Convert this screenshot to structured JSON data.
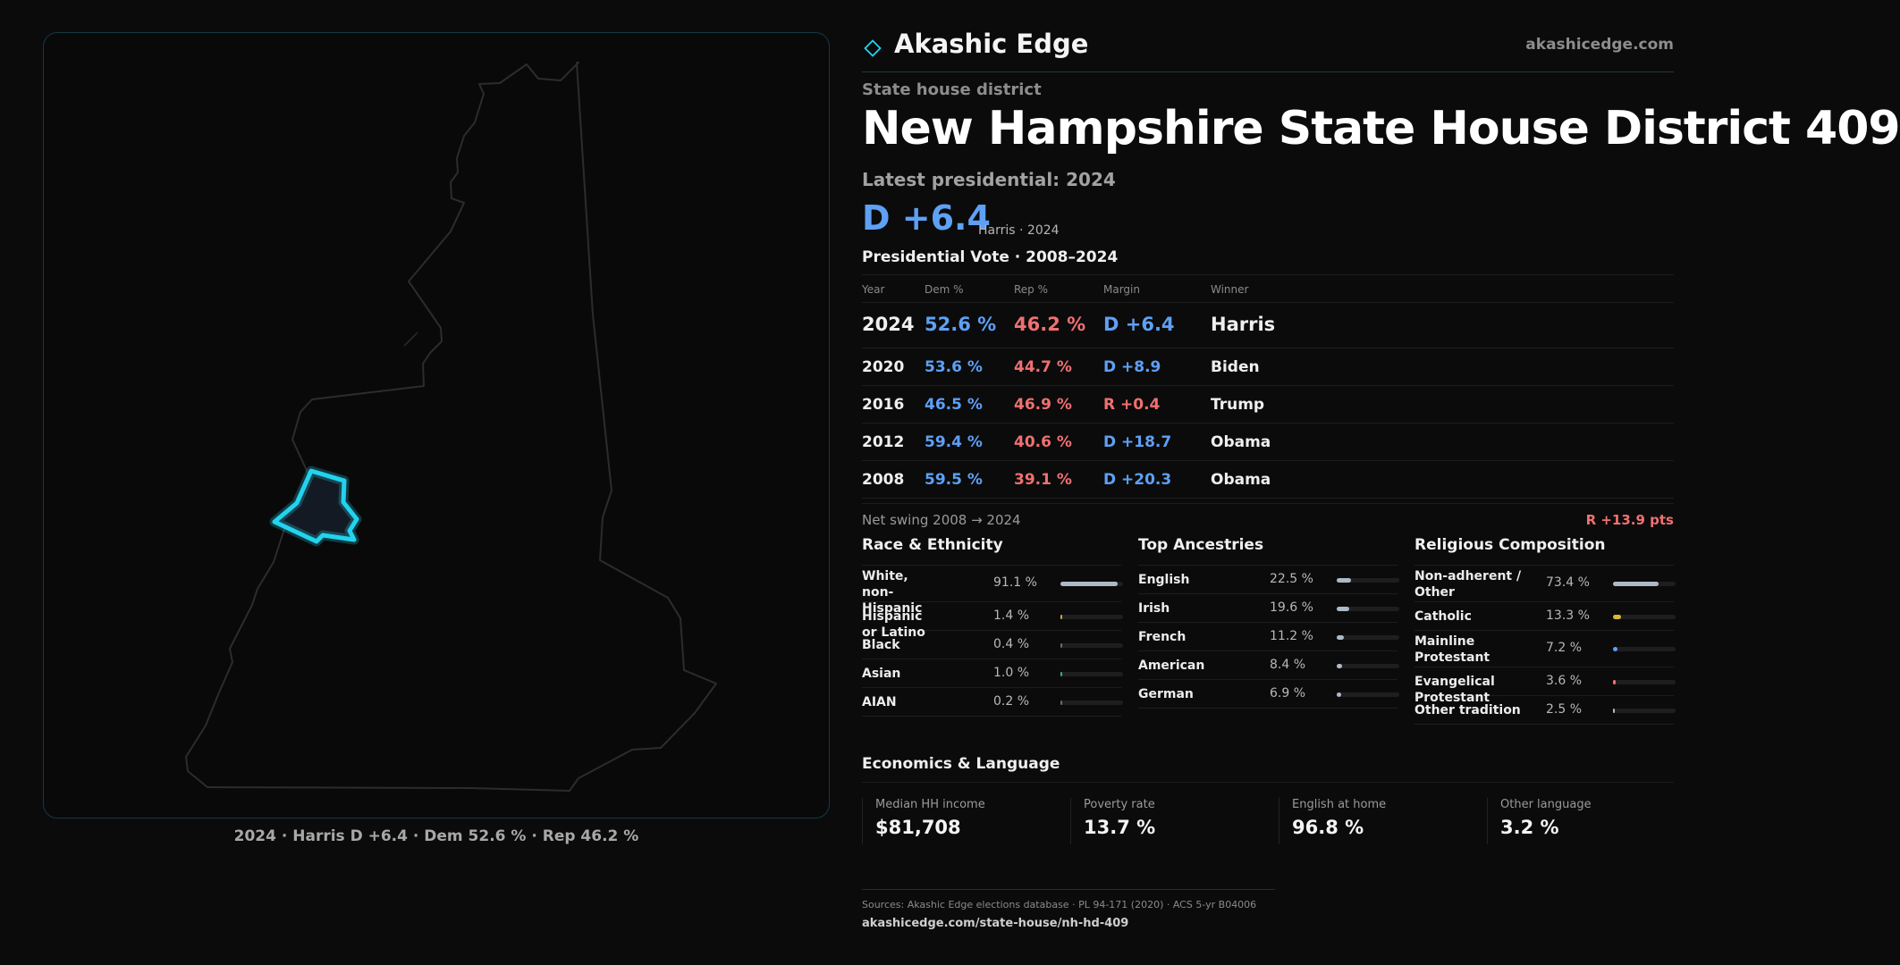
{
  "map": {
    "caption": "2024 · Harris D +6.4 · Dem 52.6 % · Rep 46.2 %",
    "colors": {
      "state_outline": "#2c2c2e",
      "district_outline": "#22d3ee",
      "district_fill": "#141a24",
      "panel_border": "#123a44"
    }
  },
  "brand": {
    "name": "Akashic Edge",
    "url": "akashicedge.com"
  },
  "district": {
    "kind": "State house district",
    "title": "New Hampshire State House District 409",
    "latest_label": "Latest presidential: 2024",
    "margin": "D +6.4",
    "margin_sub": "Harris · 2024"
  },
  "vote_table": {
    "title": "Presidential Vote · 2008–2024",
    "headers": {
      "year": "Year",
      "dem": "Dem %",
      "rep": "Rep %",
      "margin": "Margin",
      "winner": "Winner"
    },
    "rows": [
      {
        "year": "2024",
        "dem": "52.6 %",
        "rep": "46.2 %",
        "margin": "D +6.4",
        "winner": "Harris",
        "party": "D"
      },
      {
        "year": "2020",
        "dem": "53.6 %",
        "rep": "44.7 %",
        "margin": "D +8.9",
        "winner": "Biden",
        "party": "D"
      },
      {
        "year": "2016",
        "dem": "46.5 %",
        "rep": "46.9 %",
        "margin": "R +0.4",
        "winner": "Trump",
        "party": "R"
      },
      {
        "year": "2012",
        "dem": "59.4 %",
        "rep": "40.6 %",
        "margin": "D +18.7",
        "winner": "Obama",
        "party": "D"
      },
      {
        "year": "2008",
        "dem": "59.5 %",
        "rep": "39.1 %",
        "margin": "D +20.3",
        "winner": "Obama",
        "party": "D"
      }
    ],
    "swing_label": "Net swing 2008 → 2024",
    "swing_value": "R +13.9 pts"
  },
  "race": {
    "title": "Race & Ethnicity",
    "bar_color": "#b8c2cc",
    "items": [
      {
        "label": "White, non-Hispanic",
        "value": "91.1 %",
        "share": 0.911,
        "color": "#aeb9c6"
      },
      {
        "label": "Hispanic or Latino",
        "value": "1.4 %",
        "share": 0.014,
        "color": "#d6a23a"
      },
      {
        "label": "Black",
        "value": "0.4 %",
        "share": 0.004,
        "color": "#6b6b6b"
      },
      {
        "label": "Asian",
        "value": "1.0 %",
        "share": 0.01,
        "color": "#3fae6a"
      },
      {
        "label": "AIAN",
        "value": "0.2 %",
        "share": 0.002,
        "color": "#6b6b6b"
      }
    ]
  },
  "ancestry": {
    "title": "Top Ancestries",
    "items": [
      {
        "label": "English",
        "value": "22.5 %",
        "share": 0.225,
        "color": "#aeb9c6"
      },
      {
        "label": "Irish",
        "value": "19.6 %",
        "share": 0.196,
        "color": "#aeb9c6"
      },
      {
        "label": "French",
        "value": "11.2 %",
        "share": 0.112,
        "color": "#aeb9c6"
      },
      {
        "label": "American",
        "value": "8.4 %",
        "share": 0.084,
        "color": "#aeb9c6"
      },
      {
        "label": "German",
        "value": "6.9 %",
        "share": 0.069,
        "color": "#aeb9c6"
      }
    ]
  },
  "religion": {
    "title": "Religious Composition",
    "items": [
      {
        "label": "Non-adherent / Other",
        "value": "73.4 %",
        "share": 0.734,
        "color": "#aeb9c6"
      },
      {
        "label": "Catholic",
        "value": "13.3 %",
        "share": 0.133,
        "color": "#e0b531"
      },
      {
        "label": "Mainline Protestant",
        "value": "7.2 %",
        "share": 0.072,
        "color": "#5ea0f4"
      },
      {
        "label": "Evangelical Protestant",
        "value": "3.6 %",
        "share": 0.036,
        "color": "#f07070"
      },
      {
        "label": "Other tradition",
        "value": "2.5 %",
        "share": 0.025,
        "color": "#aeb9c6"
      }
    ]
  },
  "economics": {
    "title": "Economics & Language",
    "cards": [
      {
        "label": "Median HH income",
        "value": "$81,708"
      },
      {
        "label": "Poverty rate",
        "value": "13.7 %"
      },
      {
        "label": "English at home",
        "value": "96.8 %"
      },
      {
        "label": "Other language",
        "value": "3.2 %"
      }
    ]
  },
  "sources": {
    "text": "Sources: Akashic Edge elections database · PL 94-171 (2020) · ACS 5-yr B04006",
    "url": "akashicedge.com/state-house/nh-hd-409"
  },
  "colors": {
    "dem": "#5ea0f4",
    "rep": "#f07070",
    "accent": "#22d3ee"
  }
}
